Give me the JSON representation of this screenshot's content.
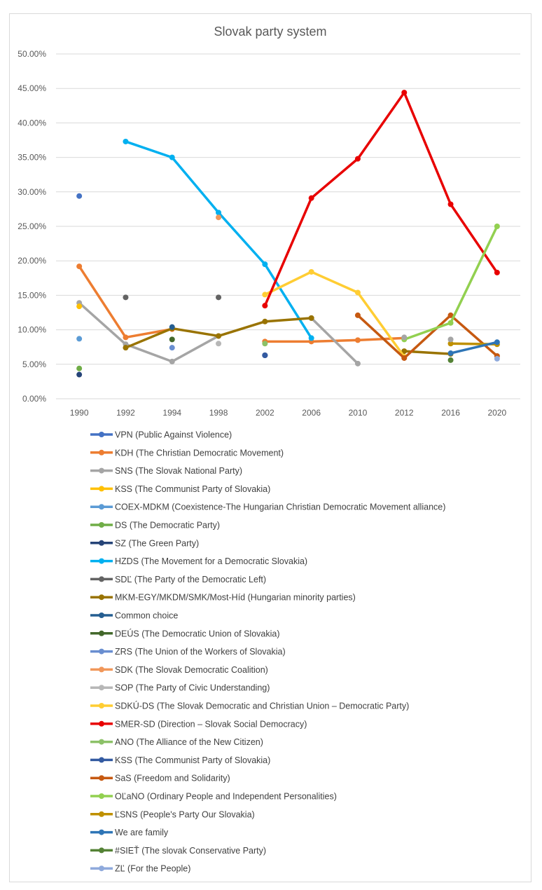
{
  "chart_data": {
    "type": "line",
    "title": "Slovak party system",
    "xlabel": "",
    "ylabel": "",
    "categories": [
      "1990",
      "1992",
      "1994",
      "1998",
      "2002",
      "2006",
      "2010",
      "2012",
      "2016",
      "2020"
    ],
    "ylim": [
      0,
      0.5
    ],
    "yticks": [
      "0.00%",
      "5.00%",
      "10.00%",
      "15.00%",
      "20.00%",
      "25.00%",
      "30.00%",
      "35.00%",
      "40.00%",
      "45.00%",
      "50.00%"
    ],
    "grid": true,
    "legend_position": "bottom",
    "series": [
      {
        "name": "VPN (Public Against Violence)",
        "color": "#4472c4",
        "values": [
          0.294,
          null,
          null,
          null,
          null,
          null,
          null,
          null,
          null,
          null
        ]
      },
      {
        "name": "KDH (The Christian Democratic Movement)",
        "color": "#ed7d31",
        "values": [
          0.192,
          0.089,
          0.101,
          null,
          0.083,
          0.083,
          0.085,
          0.088,
          null,
          null
        ]
      },
      {
        "name": "SNS (The Slovak National Party)",
        "color": "#a5a5a5",
        "values": [
          0.139,
          0.079,
          0.054,
          0.091,
          null,
          0.117,
          0.051,
          null,
          null,
          null
        ]
      },
      {
        "name": "KSS (The Communist Party of Slovakia)",
        "color": "#ffc000",
        "values": [
          0.134,
          null,
          null,
          null,
          null,
          null,
          null,
          null,
          null,
          null
        ]
      },
      {
        "name": "COEX-MDKM (Coexistence-The Hungarian Christian Democratic Movement alliance)",
        "color": "#5b9bd5",
        "values": [
          0.087,
          null,
          null,
          null,
          null,
          null,
          null,
          null,
          null,
          null
        ]
      },
      {
        "name": "DS (The Democratic Party)",
        "color": "#70ad47",
        "values": [
          0.044,
          null,
          null,
          null,
          null,
          null,
          null,
          null,
          null,
          null
        ]
      },
      {
        "name": "SZ (The Green Party)",
        "color": "#264478",
        "values": [
          0.035,
          null,
          null,
          null,
          0.063,
          null,
          null,
          null,
          null,
          null
        ]
      },
      {
        "name": "HZDS (The Movement for a Democratic Slovakia)",
        "color": "#00b0f0",
        "values": [
          null,
          0.373,
          0.35,
          0.27,
          0.195,
          0.088,
          null,
          null,
          null,
          null
        ]
      },
      {
        "name": "SDĽ (The Party of the Democratic Left)",
        "color": "#636363",
        "values": [
          null,
          0.147,
          null,
          0.147,
          null,
          null,
          null,
          null,
          null,
          null
        ]
      },
      {
        "name": "MKM-EGY/MKDM/SMK/Most-Híd (Hungarian minority parties)",
        "color": "#997300",
        "values": [
          null,
          0.074,
          0.102,
          0.091,
          0.112,
          0.117,
          null,
          0.069,
          0.065,
          null
        ]
      },
      {
        "name": "Common choice",
        "color": "#255e91",
        "values": [
          null,
          null,
          0.104,
          null,
          null,
          null,
          null,
          null,
          null,
          null
        ]
      },
      {
        "name": "DEÚS (The Democratic Union of Slovakia)",
        "color": "#43682b",
        "values": [
          null,
          null,
          0.086,
          null,
          null,
          null,
          null,
          null,
          null,
          null
        ]
      },
      {
        "name": "ZRS (The Union of the Workers of Slovakia)",
        "color": "#698ed0",
        "values": [
          null,
          null,
          0.074,
          null,
          null,
          null,
          null,
          null,
          null,
          null
        ]
      },
      {
        "name": "SDK (The Slovak Democratic Coalition)",
        "color": "#f1975a",
        "values": [
          null,
          null,
          null,
          0.263,
          null,
          null,
          null,
          null,
          null,
          null
        ]
      },
      {
        "name": "SOP (The Party of Civic Understanding)",
        "color": "#b7b7b7",
        "values": [
          null,
          null,
          null,
          0.08,
          null,
          null,
          null,
          null,
          null,
          null
        ]
      },
      {
        "name": "SDKÚ-DS (The Slovak Democratic and Christian Union – Democratic Party)",
        "color": "#ffcd33",
        "values": [
          null,
          null,
          null,
          null,
          0.151,
          0.184,
          0.154,
          0.061,
          null,
          null
        ]
      },
      {
        "name": "SMER-SD (Direction – Slovak Social Democracy)",
        "color": "#e80000",
        "values": [
          null,
          null,
          null,
          null,
          0.135,
          0.291,
          0.348,
          0.444,
          0.282,
          0.183
        ]
      },
      {
        "name": "ANO (The Alliance of the New Citizen)",
        "color": "#8cc168",
        "values": [
          null,
          null,
          null,
          null,
          0.08,
          null,
          null,
          null,
          null,
          null
        ]
      },
      {
        "name": "KSS (The Communist Party of Slovakia)",
        "color": "#335aa1",
        "values": [
          null,
          null,
          null,
          null,
          0.063,
          null,
          null,
          null,
          null,
          null
        ]
      },
      {
        "name": "SaS (Freedom and Solidarity)",
        "color": "#c65911",
        "values": [
          null,
          null,
          null,
          null,
          null,
          null,
          0.121,
          0.059,
          0.121,
          0.062
        ]
      },
      {
        "name": "OĽaNO (Ordinary People and Independent Personalities)",
        "color": "#92d050",
        "values": [
          null,
          null,
          null,
          null,
          null,
          null,
          null,
          0.086,
          0.11,
          0.25
        ]
      },
      {
        "name": "ĽSNS (People's Party Our Slovakia)",
        "color": "#bf9000",
        "values": [
          null,
          null,
          null,
          null,
          null,
          null,
          null,
          null,
          0.08,
          0.079
        ]
      },
      {
        "name": "We are family",
        "color": "#2e75b6",
        "values": [
          null,
          null,
          null,
          null,
          null,
          null,
          null,
          null,
          0.066,
          0.082
        ]
      },
      {
        "name": "#SIEŤ (The slovak Conservative Party)",
        "color": "#548235",
        "values": [
          null,
          null,
          null,
          null,
          null,
          null,
          null,
          null,
          0.056,
          null
        ]
      },
      {
        "name": "ZĽ (For the People)",
        "color": "#8faadc",
        "values": [
          null,
          null,
          null,
          null,
          null,
          null,
          null,
          null,
          null,
          0.058
        ]
      }
    ],
    "extra_points": [
      {
        "series_index": 2,
        "category": "2012",
        "value": 0.089
      },
      {
        "series_index": 2,
        "category": "2016",
        "value": 0.086
      }
    ]
  }
}
